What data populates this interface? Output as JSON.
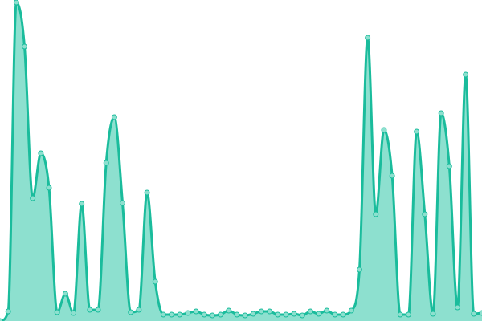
{
  "chart_data": {
    "type": "area",
    "title": "",
    "xlabel": "",
    "ylabel": "",
    "x": [
      0,
      1,
      2,
      3,
      4,
      5,
      6,
      7,
      8,
      9,
      10,
      11,
      12,
      13,
      14,
      15,
      16,
      17,
      18,
      19,
      20,
      21,
      22,
      23,
      24,
      25,
      26,
      27,
      28,
      29,
      30,
      31,
      32,
      33,
      34,
      35,
      36,
      37,
      38,
      39,
      40,
      41,
      42,
      43,
      44,
      45,
      46,
      47,
      48,
      49,
      50,
      51,
      52,
      53,
      54,
      55,
      56,
      57,
      58,
      59
    ],
    "values": [
      0,
      12,
      397,
      342,
      153,
      209,
      166,
      11,
      34,
      10,
      146,
      14,
      14,
      197,
      254,
      147,
      11,
      14,
      160,
      49,
      8,
      8,
      8,
      10,
      12,
      8,
      7,
      8,
      13,
      8,
      7,
      9,
      12,
      12,
      8,
      8,
      9,
      7,
      12,
      9,
      13,
      8,
      8,
      13,
      64,
      353,
      133,
      238,
      181,
      8,
      8,
      236,
      133,
      9,
      259,
      193,
      17,
      307,
      9,
      10
    ],
    "xlim": [
      0,
      59
    ],
    "ylim": [
      0,
      400
    ],
    "grid": false,
    "axes_visible": false,
    "markers": true,
    "smooth": true,
    "colors": {
      "line": "#1abc9c",
      "fill": "#8de0cf",
      "marker_fill": "#8de0cf"
    }
  }
}
